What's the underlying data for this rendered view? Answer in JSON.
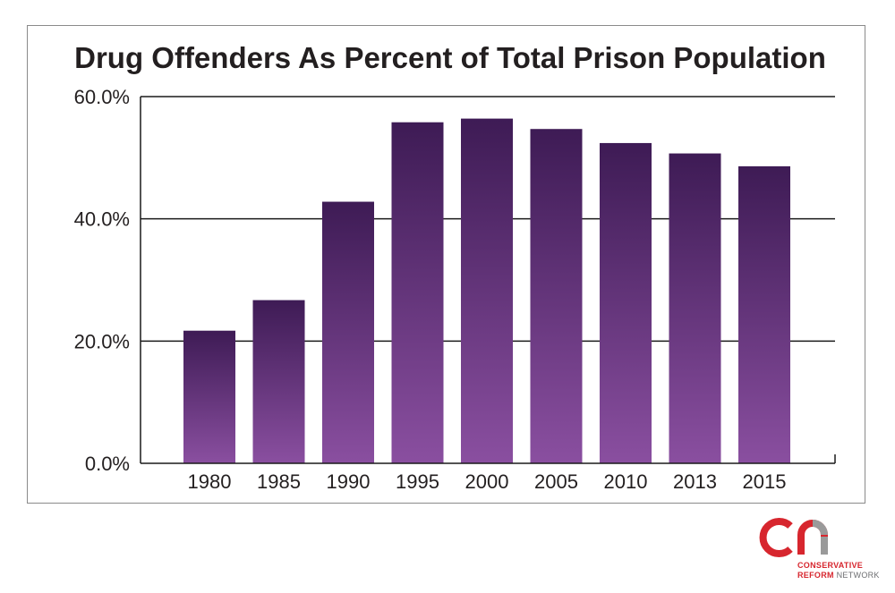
{
  "chart_data": {
    "type": "bar",
    "title": "Drug Offenders As Percent of Total Prison Population",
    "categories": [
      "1980",
      "1985",
      "1990",
      "1995",
      "2000",
      "2005",
      "2010",
      "2013",
      "2015"
    ],
    "values": [
      21.7,
      26.7,
      42.8,
      55.8,
      56.4,
      54.7,
      52.4,
      50.7,
      48.6
    ],
    "ylim": [
      0,
      60
    ],
    "yticks": [
      "0.0%",
      "20.0%",
      "40.0%",
      "60.0%"
    ],
    "ytick_values": [
      0,
      20,
      40,
      60
    ],
    "xlabel": "",
    "ylabel": "",
    "grid": true,
    "colors": {
      "bar_top": "#3e1b55",
      "bar_bottom": "#8a4fa0"
    }
  },
  "logo": {
    "line1": "CONSERVATIVE",
    "line2_a": "REFORM",
    "line2_b": "NETWORK",
    "colors": {
      "red": "#d7262e",
      "gray": "#6d6e71"
    }
  }
}
